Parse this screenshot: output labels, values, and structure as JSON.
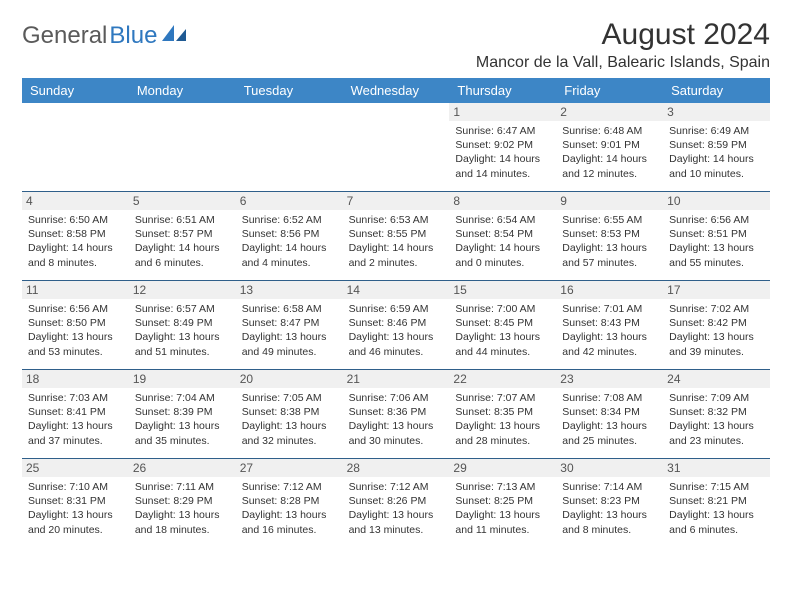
{
  "brand": {
    "part1": "General",
    "part2": "Blue"
  },
  "title": "August 2024",
  "location": "Mancor de la Vall, Balearic Islands, Spain",
  "colors": {
    "header_bg": "#3d86c6",
    "header_text": "#ffffff",
    "daynum_bg": "#f0f0f0",
    "rule": "#2f5f8a",
    "brand_gray": "#5a5a5a",
    "brand_blue": "#2f78bf"
  },
  "day_labels": [
    "Sunday",
    "Monday",
    "Tuesday",
    "Wednesday",
    "Thursday",
    "Friday",
    "Saturday"
  ],
  "weeks": [
    [
      {
        "empty": true
      },
      {
        "empty": true
      },
      {
        "empty": true
      },
      {
        "empty": true
      },
      {
        "day": "1",
        "sunrise": "Sunrise: 6:47 AM",
        "sunset": "Sunset: 9:02 PM",
        "daylight1": "Daylight: 14 hours",
        "daylight2": "and 14 minutes."
      },
      {
        "day": "2",
        "sunrise": "Sunrise: 6:48 AM",
        "sunset": "Sunset: 9:01 PM",
        "daylight1": "Daylight: 14 hours",
        "daylight2": "and 12 minutes."
      },
      {
        "day": "3",
        "sunrise": "Sunrise: 6:49 AM",
        "sunset": "Sunset: 8:59 PM",
        "daylight1": "Daylight: 14 hours",
        "daylight2": "and 10 minutes."
      }
    ],
    [
      {
        "day": "4",
        "sunrise": "Sunrise: 6:50 AM",
        "sunset": "Sunset: 8:58 PM",
        "daylight1": "Daylight: 14 hours",
        "daylight2": "and 8 minutes."
      },
      {
        "day": "5",
        "sunrise": "Sunrise: 6:51 AM",
        "sunset": "Sunset: 8:57 PM",
        "daylight1": "Daylight: 14 hours",
        "daylight2": "and 6 minutes."
      },
      {
        "day": "6",
        "sunrise": "Sunrise: 6:52 AM",
        "sunset": "Sunset: 8:56 PM",
        "daylight1": "Daylight: 14 hours",
        "daylight2": "and 4 minutes."
      },
      {
        "day": "7",
        "sunrise": "Sunrise: 6:53 AM",
        "sunset": "Sunset: 8:55 PM",
        "daylight1": "Daylight: 14 hours",
        "daylight2": "and 2 minutes."
      },
      {
        "day": "8",
        "sunrise": "Sunrise: 6:54 AM",
        "sunset": "Sunset: 8:54 PM",
        "daylight1": "Daylight: 14 hours",
        "daylight2": "and 0 minutes."
      },
      {
        "day": "9",
        "sunrise": "Sunrise: 6:55 AM",
        "sunset": "Sunset: 8:53 PM",
        "daylight1": "Daylight: 13 hours",
        "daylight2": "and 57 minutes."
      },
      {
        "day": "10",
        "sunrise": "Sunrise: 6:56 AM",
        "sunset": "Sunset: 8:51 PM",
        "daylight1": "Daylight: 13 hours",
        "daylight2": "and 55 minutes."
      }
    ],
    [
      {
        "day": "11",
        "sunrise": "Sunrise: 6:56 AM",
        "sunset": "Sunset: 8:50 PM",
        "daylight1": "Daylight: 13 hours",
        "daylight2": "and 53 minutes."
      },
      {
        "day": "12",
        "sunrise": "Sunrise: 6:57 AM",
        "sunset": "Sunset: 8:49 PM",
        "daylight1": "Daylight: 13 hours",
        "daylight2": "and 51 minutes."
      },
      {
        "day": "13",
        "sunrise": "Sunrise: 6:58 AM",
        "sunset": "Sunset: 8:47 PM",
        "daylight1": "Daylight: 13 hours",
        "daylight2": "and 49 minutes."
      },
      {
        "day": "14",
        "sunrise": "Sunrise: 6:59 AM",
        "sunset": "Sunset: 8:46 PM",
        "daylight1": "Daylight: 13 hours",
        "daylight2": "and 46 minutes."
      },
      {
        "day": "15",
        "sunrise": "Sunrise: 7:00 AM",
        "sunset": "Sunset: 8:45 PM",
        "daylight1": "Daylight: 13 hours",
        "daylight2": "and 44 minutes."
      },
      {
        "day": "16",
        "sunrise": "Sunrise: 7:01 AM",
        "sunset": "Sunset: 8:43 PM",
        "daylight1": "Daylight: 13 hours",
        "daylight2": "and 42 minutes."
      },
      {
        "day": "17",
        "sunrise": "Sunrise: 7:02 AM",
        "sunset": "Sunset: 8:42 PM",
        "daylight1": "Daylight: 13 hours",
        "daylight2": "and 39 minutes."
      }
    ],
    [
      {
        "day": "18",
        "sunrise": "Sunrise: 7:03 AM",
        "sunset": "Sunset: 8:41 PM",
        "daylight1": "Daylight: 13 hours",
        "daylight2": "and 37 minutes."
      },
      {
        "day": "19",
        "sunrise": "Sunrise: 7:04 AM",
        "sunset": "Sunset: 8:39 PM",
        "daylight1": "Daylight: 13 hours",
        "daylight2": "and 35 minutes."
      },
      {
        "day": "20",
        "sunrise": "Sunrise: 7:05 AM",
        "sunset": "Sunset: 8:38 PM",
        "daylight1": "Daylight: 13 hours",
        "daylight2": "and 32 minutes."
      },
      {
        "day": "21",
        "sunrise": "Sunrise: 7:06 AM",
        "sunset": "Sunset: 8:36 PM",
        "daylight1": "Daylight: 13 hours",
        "daylight2": "and 30 minutes."
      },
      {
        "day": "22",
        "sunrise": "Sunrise: 7:07 AM",
        "sunset": "Sunset: 8:35 PM",
        "daylight1": "Daylight: 13 hours",
        "daylight2": "and 28 minutes."
      },
      {
        "day": "23",
        "sunrise": "Sunrise: 7:08 AM",
        "sunset": "Sunset: 8:34 PM",
        "daylight1": "Daylight: 13 hours",
        "daylight2": "and 25 minutes."
      },
      {
        "day": "24",
        "sunrise": "Sunrise: 7:09 AM",
        "sunset": "Sunset: 8:32 PM",
        "daylight1": "Daylight: 13 hours",
        "daylight2": "and 23 minutes."
      }
    ],
    [
      {
        "day": "25",
        "sunrise": "Sunrise: 7:10 AM",
        "sunset": "Sunset: 8:31 PM",
        "daylight1": "Daylight: 13 hours",
        "daylight2": "and 20 minutes."
      },
      {
        "day": "26",
        "sunrise": "Sunrise: 7:11 AM",
        "sunset": "Sunset: 8:29 PM",
        "daylight1": "Daylight: 13 hours",
        "daylight2": "and 18 minutes."
      },
      {
        "day": "27",
        "sunrise": "Sunrise: 7:12 AM",
        "sunset": "Sunset: 8:28 PM",
        "daylight1": "Daylight: 13 hours",
        "daylight2": "and 16 minutes."
      },
      {
        "day": "28",
        "sunrise": "Sunrise: 7:12 AM",
        "sunset": "Sunset: 8:26 PM",
        "daylight1": "Daylight: 13 hours",
        "daylight2": "and 13 minutes."
      },
      {
        "day": "29",
        "sunrise": "Sunrise: 7:13 AM",
        "sunset": "Sunset: 8:25 PM",
        "daylight1": "Daylight: 13 hours",
        "daylight2": "and 11 minutes."
      },
      {
        "day": "30",
        "sunrise": "Sunrise: 7:14 AM",
        "sunset": "Sunset: 8:23 PM",
        "daylight1": "Daylight: 13 hours",
        "daylight2": "and 8 minutes."
      },
      {
        "day": "31",
        "sunrise": "Sunrise: 7:15 AM",
        "sunset": "Sunset: 8:21 PM",
        "daylight1": "Daylight: 13 hours",
        "daylight2": "and 6 minutes."
      }
    ]
  ]
}
